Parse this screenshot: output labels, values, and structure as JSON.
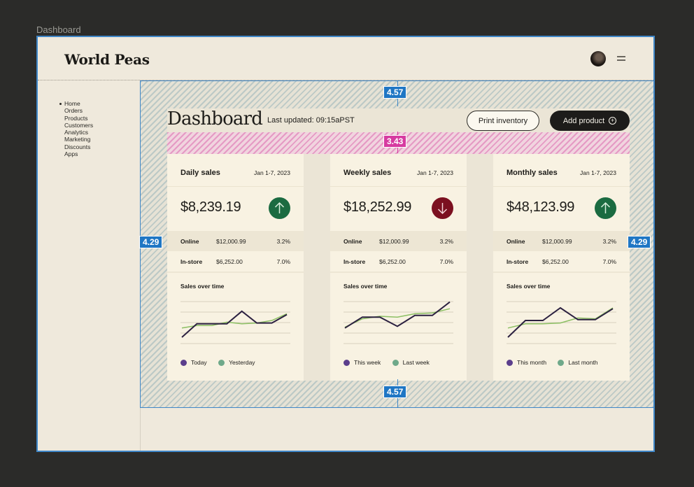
{
  "canvas": {
    "frame_label": "Dashboard"
  },
  "header": {
    "brand": "World Peas"
  },
  "sidebar": {
    "items": [
      {
        "label": "Home"
      },
      {
        "label": "Orders"
      },
      {
        "label": "Products"
      },
      {
        "label": "Customers"
      },
      {
        "label": "Analytics"
      },
      {
        "label": "Marketing"
      },
      {
        "label": "Discounts"
      },
      {
        "label": "Apps"
      }
    ]
  },
  "main": {
    "title": "Dashboard",
    "last_updated": "Last updated: 09:15aPST",
    "print_label": "Print inventory",
    "add_label": "Add product",
    "add_icon": "plus-circle-icon"
  },
  "spacing": {
    "top": "4.57",
    "bottom": "4.57",
    "left": "4.29",
    "right": "4.29",
    "gap": "3.43"
  },
  "colors": {
    "up": "#1b6b41",
    "down": "#7b1020",
    "line_current": "#2b2040",
    "line_previous": "#8cbf63",
    "dot_current": "#5b3e8c",
    "dot_previous": "#6fa98a",
    "spec_blue": "#1f76c4",
    "spec_pink": "#d63ba0"
  },
  "cards": [
    {
      "title": "Daily sales",
      "date": "Jan 1-7, 2023",
      "value": "$8,239.19",
      "trend": "up",
      "trend_icon": "arrow-up-icon",
      "online": {
        "label": "Online",
        "amount": "$12,000.99",
        "pct": "3.2%"
      },
      "instore": {
        "label": "In-store",
        "amount": "$6,252.00",
        "pct": "7.0%"
      },
      "chart_label": "Sales over time",
      "legend": [
        "Today",
        "Yesterday"
      ],
      "current": [
        1.0,
        2.6,
        2.6,
        2.6,
        4.1,
        2.7,
        2.7,
        3.7
      ],
      "previous": [
        2.1,
        2.4,
        2.4,
        2.8,
        2.6,
        2.7,
        3.0,
        3.8
      ]
    },
    {
      "title": "Weekly sales",
      "date": "Jan 1-7, 2023",
      "value": "$18,252.99",
      "trend": "down",
      "trend_icon": "arrow-down-icon",
      "online": {
        "label": "Online",
        "amount": "$12,000.99",
        "pct": "3.2%"
      },
      "instore": {
        "label": "In-store",
        "amount": "$6,252.00",
        "pct": "7.0%"
      },
      "chart_label": "Sales over time",
      "legend": [
        "This week",
        "Last week"
      ],
      "current": [
        2.1,
        3.4,
        3.4,
        2.3,
        3.6,
        3.6,
        5.2
      ],
      "previous": [
        2.2,
        3.2,
        3.5,
        3.4,
        3.8,
        3.9,
        4.4
      ]
    },
    {
      "title": "Monthly sales",
      "date": "Jan 1-7, 2023",
      "value": "$48,123.99",
      "trend": "up",
      "trend_icon": "arrow-up-icon",
      "online": {
        "label": "Online",
        "amount": "$12,000.99",
        "pct": "3.2%"
      },
      "instore": {
        "label": "In-store",
        "amount": "$6,252.00",
        "pct": "7.0%"
      },
      "chart_label": "Sales over time",
      "legend": [
        "This month",
        "Last month"
      ],
      "current": [
        1.0,
        3.0,
        3.0,
        4.5,
        3.1,
        3.1,
        4.4
      ],
      "previous": [
        2.1,
        2.6,
        2.6,
        2.7,
        3.3,
        3.2,
        4.5
      ]
    }
  ]
}
